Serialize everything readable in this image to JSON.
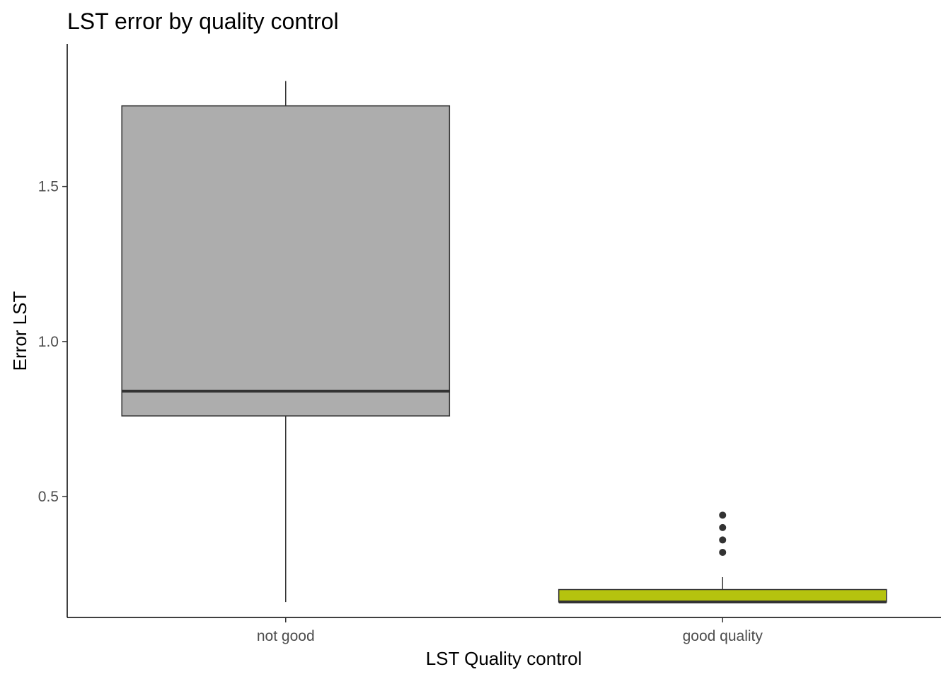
{
  "chart_data": {
    "type": "boxplot",
    "title": "LST error by quality control",
    "xlabel": "LST Quality control",
    "ylabel": "Error LST",
    "categories": [
      "not good",
      "good quality"
    ],
    "ylim": [
      0.11,
      1.96
    ],
    "yticks": [
      0.5,
      1.0,
      1.5
    ],
    "ytick_labels": [
      "0.5",
      "1.0",
      "1.5"
    ],
    "grid": false,
    "legend": "none",
    "boxes": [
      {
        "category": "not good",
        "whisker_low": 0.16,
        "q1": 0.76,
        "median": 0.84,
        "q3": 1.76,
        "whisker_high": 1.84,
        "outliers": [],
        "fill": "#adadad"
      },
      {
        "category": "good quality",
        "whisker_low": 0.16,
        "q1": 0.16,
        "median": 0.16,
        "q3": 0.2,
        "whisker_high": 0.24,
        "outliers": [
          0.32,
          0.36,
          0.4,
          0.44
        ],
        "fill": "#b5c30f"
      }
    ]
  }
}
